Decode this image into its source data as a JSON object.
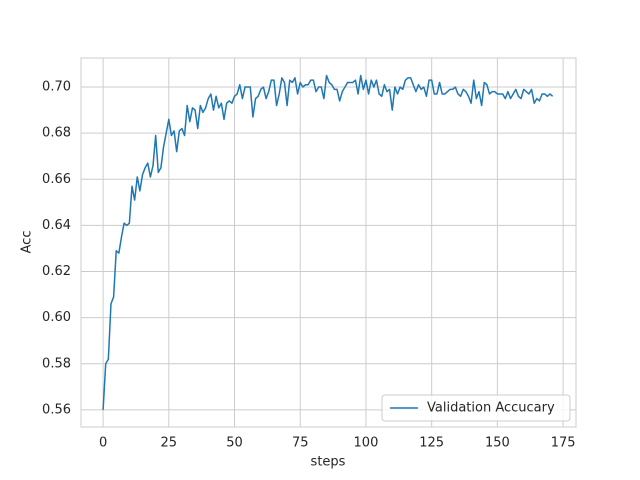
{
  "chart_data": {
    "type": "line",
    "xlabel": "steps",
    "ylabel": "Acc",
    "x": [
      0,
      1,
      2,
      3,
      4,
      5,
      6,
      7,
      8,
      9,
      10,
      11,
      12,
      13,
      14,
      15,
      16,
      17,
      18,
      19,
      20,
      21,
      22,
      23,
      24,
      25,
      26,
      27,
      28,
      29,
      30,
      31,
      32,
      33,
      34,
      35,
      36,
      37,
      38,
      39,
      40,
      41,
      42,
      43,
      44,
      45,
      46,
      47,
      48,
      49,
      50,
      51,
      52,
      53,
      54,
      55,
      56,
      57,
      58,
      59,
      60,
      61,
      62,
      63,
      64,
      65,
      66,
      67,
      68,
      69,
      70,
      71,
      72,
      73,
      74,
      75,
      76,
      77,
      78,
      79,
      80,
      81,
      82,
      83,
      84,
      85,
      86,
      87,
      88,
      89,
      90,
      91,
      92,
      93,
      94,
      95,
      96,
      97,
      98,
      99,
      100,
      101,
      102,
      103,
      104,
      105,
      106,
      107,
      108,
      109,
      110,
      111,
      112,
      113,
      114,
      115,
      116,
      117,
      118,
      119,
      120,
      121,
      122,
      123,
      124,
      125,
      126,
      127,
      128,
      129,
      130,
      131,
      132,
      133,
      134,
      135,
      136,
      137,
      138,
      139,
      140,
      141,
      142,
      143,
      144,
      145,
      146,
      147,
      148,
      149,
      150,
      151,
      152,
      153,
      154,
      155,
      156,
      157,
      158,
      159,
      160,
      161,
      162,
      163,
      164,
      165,
      166,
      167,
      168,
      169,
      170,
      171
    ],
    "series": [
      {
        "name": "Validation Accucary",
        "color": "#1f77b4",
        "values": [
          0.56,
          0.58,
          0.582,
          0.606,
          0.609,
          0.629,
          0.628,
          0.635,
          0.641,
          0.64,
          0.641,
          0.657,
          0.651,
          0.661,
          0.655,
          0.662,
          0.665,
          0.667,
          0.661,
          0.666,
          0.679,
          0.663,
          0.665,
          0.674,
          0.68,
          0.686,
          0.679,
          0.681,
          0.672,
          0.681,
          0.682,
          0.679,
          0.692,
          0.685,
          0.691,
          0.69,
          0.682,
          0.692,
          0.689,
          0.691,
          0.695,
          0.697,
          0.69,
          0.696,
          0.691,
          0.693,
          0.686,
          0.693,
          0.694,
          0.693,
          0.696,
          0.697,
          0.701,
          0.695,
          0.7,
          0.7,
          0.7,
          0.687,
          0.695,
          0.696,
          0.699,
          0.7,
          0.695,
          0.698,
          0.703,
          0.703,
          0.692,
          0.697,
          0.704,
          0.702,
          0.692,
          0.703,
          0.702,
          0.704,
          0.697,
          0.702,
          0.7,
          0.701,
          0.701,
          0.703,
          0.703,
          0.698,
          0.7,
          0.7,
          0.695,
          0.705,
          0.702,
          0.701,
          0.699,
          0.699,
          0.694,
          0.698,
          0.7,
          0.702,
          0.702,
          0.702,
          0.703,
          0.697,
          0.705,
          0.699,
          0.703,
          0.697,
          0.703,
          0.7,
          0.703,
          0.697,
          0.696,
          0.701,
          0.698,
          0.699,
          0.69,
          0.7,
          0.697,
          0.7,
          0.699,
          0.703,
          0.704,
          0.704,
          0.701,
          0.698,
          0.701,
          0.699,
          0.7,
          0.696,
          0.703,
          0.703,
          0.697,
          0.697,
          0.702,
          0.697,
          0.697,
          0.698,
          0.699,
          0.699,
          0.7,
          0.697,
          0.696,
          0.699,
          0.698,
          0.696,
          0.693,
          0.703,
          0.695,
          0.698,
          0.692,
          0.702,
          0.701,
          0.697,
          0.698,
          0.698,
          0.697,
          0.697,
          0.697,
          0.695,
          0.698,
          0.695,
          0.697,
          0.699,
          0.696,
          0.695,
          0.699,
          0.698,
          0.697,
          0.699,
          0.693,
          0.695,
          0.694,
          0.697,
          0.697,
          0.696,
          0.697,
          0.696
        ]
      }
    ],
    "xlim": [
      -8.4,
      179.9
    ],
    "ylim": [
      0.5526,
      0.7126
    ],
    "xticks": [
      0,
      25,
      50,
      75,
      100,
      125,
      150,
      175
    ],
    "yticks": [
      0.56,
      0.58,
      {
        "value": 0.6,
        "label": "0.60"
      },
      0.62,
      0.64,
      0.66,
      0.68,
      {
        "value": 0.7,
        "label": "0.70"
      }
    ],
    "grid": true,
    "legend": "lower right"
  }
}
